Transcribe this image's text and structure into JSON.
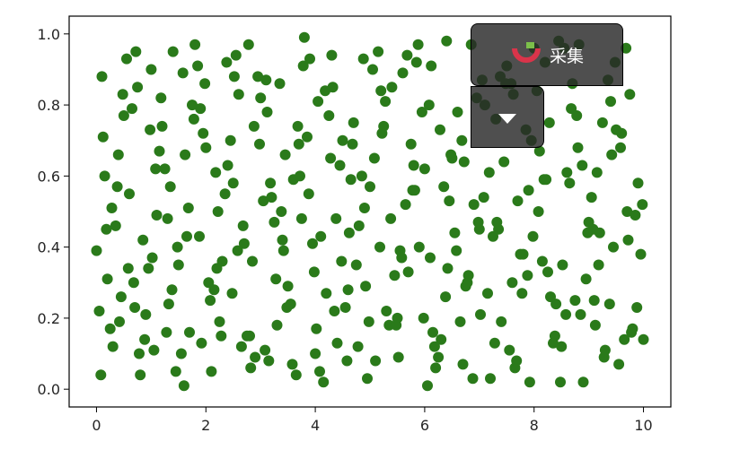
{
  "chart_data": {
    "type": "scatter",
    "title": "",
    "xlabel": "",
    "ylabel": "",
    "xlim": [
      -0.5,
      10.5
    ],
    "ylim": [
      -0.05,
      1.05
    ],
    "x_ticks": [
      0,
      2,
      4,
      6,
      8,
      10
    ],
    "x_tick_labels": [
      "0",
      "2",
      "4",
      "6",
      "8",
      "10"
    ],
    "y_ticks": [
      0.0,
      0.2,
      0.4,
      0.6,
      0.8,
      1.0
    ],
    "y_tick_labels": [
      "0.0",
      "0.2",
      "0.4",
      "0.6",
      "0.8",
      "1.0"
    ],
    "grid": false,
    "point_color": "#2a7a1a",
    "series": [
      {
        "x": [
          0.1,
          0.3,
          0.6,
          0.9,
          1.2,
          1.5,
          1.8,
          2.1,
          2.4,
          2.7,
          3.0,
          3.3,
          3.6,
          3.9,
          4.2,
          4.5,
          4.8,
          5.1,
          5.4,
          5.7,
          6.0,
          6.3,
          6.6,
          6.9,
          7.2,
          7.5,
          7.8,
          8.1,
          8.4,
          8.7,
          9.0,
          9.3,
          9.6,
          9.9,
          0.2,
          0.5,
          0.8,
          1.1,
          1.4,
          1.7,
          2.0,
          2.3,
          2.6,
          2.9,
          3.2,
          3.5,
          3.8,
          4.1,
          4.4,
          4.7,
          5.0,
          5.3,
          5.6,
          5.9,
          6.2,
          6.5,
          6.8,
          7.1,
          7.4,
          7.7,
          8.0,
          8.3,
          8.6,
          8.9,
          9.2,
          9.5,
          9.8,
          0.0,
          0.4,
          0.7,
          1.0,
          1.3,
          1.6,
          1.9,
          2.2,
          2.5,
          2.8,
          3.1,
          3.4,
          3.7,
          4.0,
          4.3,
          4.6,
          4.9,
          5.2,
          5.5,
          5.8,
          6.1,
          6.4,
          6.7,
          7.0,
          7.3,
          7.6,
          7.9,
          8.2,
          8.5,
          8.8,
          9.1,
          9.4,
          9.7,
          10.0,
          0.15,
          0.45,
          0.75,
          1.05,
          1.35,
          1.65,
          1.95,
          2.25,
          2.55,
          2.85,
          3.15,
          3.45,
          3.75,
          4.05,
          4.35,
          4.65,
          4.95,
          5.25,
          5.55,
          5.85,
          6.15,
          6.45,
          6.75,
          7.05,
          7.35,
          7.65,
          7.95,
          8.25,
          8.55,
          8.85,
          9.15,
          9.45,
          9.75,
          0.25,
          0.55,
          0.85,
          1.15,
          1.45,
          1.75,
          2.05,
          2.35,
          2.65,
          2.95,
          3.25,
          3.55,
          3.85,
          4.15,
          4.45,
          4.75,
          5.05,
          5.35,
          5.65,
          5.95,
          6.25,
          6.55,
          6.85,
          7.15,
          7.45,
          7.75,
          8.05,
          8.35,
          8.65,
          8.95,
          9.25,
          9.55,
          9.85,
          0.05,
          0.35,
          0.65,
          0.95,
          1.25,
          1.55,
          1.85,
          2.15,
          2.45,
          2.75,
          3.05,
          3.35,
          3.65,
          3.95,
          4.25,
          4.55,
          4.85,
          5.15,
          5.45,
          5.75,
          6.05,
          6.35,
          6.65,
          6.95,
          7.25,
          7.55,
          7.85,
          8.15,
          8.45,
          8.75,
          9.05,
          9.35,
          9.65,
          9.95,
          0.12,
          0.42,
          0.72,
          1.02,
          1.32,
          1.62,
          1.92,
          2.22,
          2.52,
          2.82,
          3.12,
          3.42,
          3.72,
          4.02,
          4.32,
          4.62,
          4.92,
          5.22,
          5.52,
          5.82,
          6.12,
          6.42,
          6.72,
          7.02,
          7.32,
          7.62,
          7.92,
          8.22,
          8.52,
          8.82,
          9.12,
          9.42,
          9.72,
          0.28,
          0.58,
          0.88,
          1.18,
          1.48,
          1.78,
          2.08,
          2.38,
          2.68,
          2.98,
          3.28,
          3.58,
          3.88,
          4.18,
          4.48,
          4.78,
          5.08,
          5.38,
          5.68,
          5.98,
          6.28,
          6.58,
          6.88,
          7.18,
          7.48,
          7.78,
          8.08,
          8.38,
          8.68,
          8.98,
          9.28,
          9.58,
          9.88,
          0.08,
          0.38,
          0.68,
          0.98,
          1.28,
          1.58,
          1.88,
          2.18,
          2.48,
          2.78,
          3.08,
          3.38,
          3.68,
          3.98,
          4.28,
          4.58,
          4.88,
          5.18,
          5.48,
          5.78,
          6.08,
          6.38,
          6.68,
          6.98,
          7.28,
          7.58,
          7.88,
          8.18,
          8.48,
          8.78,
          9.08,
          9.38,
          9.68,
          9.98,
          0.18,
          0.48,
          0.78,
          1.08,
          1.38,
          1.68,
          1.98,
          2.28,
          2.58,
          2.88,
          3.18,
          3.48,
          3.78,
          4.08,
          4.38,
          4.68,
          4.98,
          5.28,
          5.58,
          5.88,
          6.18,
          6.48,
          6.78,
          7.08,
          7.38,
          7.68,
          7.98,
          8.28,
          8.58,
          8.88,
          9.18,
          9.48,
          9.78
        ],
        "y": [
          0.88,
          0.12,
          0.55,
          0.21,
          0.74,
          0.35,
          0.97,
          0.05,
          0.63,
          0.41,
          0.82,
          0.18,
          0.59,
          0.93,
          0.27,
          0.7,
          0.46,
          0.08,
          0.85,
          0.33,
          0.62,
          0.14,
          0.78,
          0.52,
          0.03,
          0.91,
          0.38,
          0.67,
          0.24,
          0.86,
          0.47,
          0.11,
          0.72,
          0.58,
          0.31,
          0.77,
          0.04,
          0.49,
          0.95,
          0.16,
          0.68,
          0.36,
          0.83,
          0.09,
          0.54,
          0.29,
          0.99,
          0.43,
          0.13,
          0.75,
          0.57,
          0.22,
          0.89,
          0.4,
          0.06,
          0.65,
          0.32,
          0.8,
          0.19,
          0.53,
          0.96,
          0.26,
          0.61,
          0.02,
          0.44,
          0.73,
          0.17,
          0.39,
          0.66,
          0.23,
          0.9,
          0.48,
          0.01,
          0.79,
          0.34,
          0.58,
          0.15,
          0.87,
          0.42,
          0.69,
          0.1,
          0.94,
          0.28,
          0.51,
          0.84,
          0.2,
          0.63,
          0.37,
          0.98,
          0.07,
          0.45,
          0.76,
          0.3,
          0.56,
          0.92,
          0.12,
          0.68,
          0.25,
          0.81,
          0.5,
          0.14,
          0.6,
          0.26,
          0.85,
          0.11,
          0.57,
          0.43,
          0.72,
          0.19,
          0.94,
          0.36,
          0.08,
          0.66,
          0.48,
          0.81,
          0.22,
          0.59,
          0.03,
          0.74,
          0.39,
          0.92,
          0.16,
          0.53,
          0.29,
          0.87,
          0.45,
          0.06,
          0.7,
          0.33,
          0.96,
          0.21,
          0.61,
          0.4,
          0.83,
          0.17,
          0.93,
          0.42,
          0.67,
          0.05,
          0.8,
          0.3,
          0.55,
          0.12,
          0.88,
          0.47,
          0.24,
          0.71,
          0.02,
          0.63,
          0.35,
          0.9,
          0.18,
          0.52,
          0.78,
          0.09,
          0.44,
          0.97,
          0.27,
          0.64,
          0.38,
          0.84,
          0.13,
          0.58,
          0.31,
          0.75,
          0.07,
          0.49,
          0.22,
          0.46,
          0.79,
          0.34,
          0.62,
          0.1,
          0.91,
          0.28,
          0.7,
          0.15,
          0.53,
          0.86,
          0.04,
          0.41,
          0.77,
          0.23,
          0.6,
          0.95,
          0.32,
          0.69,
          0.01,
          0.57,
          0.19,
          0.82,
          0.43,
          0.11,
          0.73,
          0.36,
          0.98,
          0.25,
          0.54,
          0.87,
          0.14,
          0.38,
          0.71,
          0.19,
          0.95,
          0.37,
          0.24,
          0.66,
          0.13,
          0.5,
          0.88,
          0.06,
          0.78,
          0.39,
          0.6,
          0.17,
          0.85,
          0.44,
          0.29,
          0.72,
          0.09,
          0.56,
          0.91,
          0.34,
          0.64,
          0.21,
          0.47,
          0.83,
          0.02,
          0.59,
          0.35,
          0.97,
          0.18,
          0.66,
          0.42,
          0.51,
          0.34,
          0.14,
          0.82,
          0.4,
          0.76,
          0.25,
          0.92,
          0.46,
          0.69,
          0.31,
          0.07,
          0.55,
          0.84,
          0.36,
          0.12,
          0.65,
          0.48,
          0.94,
          0.2,
          0.73,
          0.39,
          0.03,
          0.61,
          0.86,
          0.27,
          0.5,
          0.15,
          0.79,
          0.44,
          0.09,
          0.68,
          0.23,
          0.04,
          0.57,
          0.3,
          0.73,
          0.16,
          0.89,
          0.43,
          0.61,
          0.27,
          0.97,
          0.11,
          0.5,
          0.74,
          0.33,
          0.65,
          0.08,
          0.93,
          0.4,
          0.18,
          0.56,
          0.8,
          0.26,
          0.7,
          0.47,
          0.13,
          0.86,
          0.32,
          0.59,
          0.02,
          0.77,
          0.45,
          0.24,
          0.96,
          0.52,
          0.45,
          0.83,
          0.1,
          0.62,
          0.28,
          0.51,
          0.86,
          0.15,
          0.39,
          0.74,
          0.58,
          0.23,
          0.91,
          0.05,
          0.48,
          0.69,
          0.19,
          0.81,
          0.37,
          0.97,
          0.12,
          0.66,
          0.3,
          0.54,
          0.88,
          0.08,
          0.43,
          0.75,
          0.21,
          0.63,
          0.35,
          0.92,
          0.16
        ]
      }
    ]
  },
  "overlay": {
    "collect_label": "采集",
    "collect_icon": "magnet-icon",
    "dropdown_icon": "caret-down-icon",
    "brand_color": "#d9344a",
    "accent_color": "#7cc04a"
  }
}
